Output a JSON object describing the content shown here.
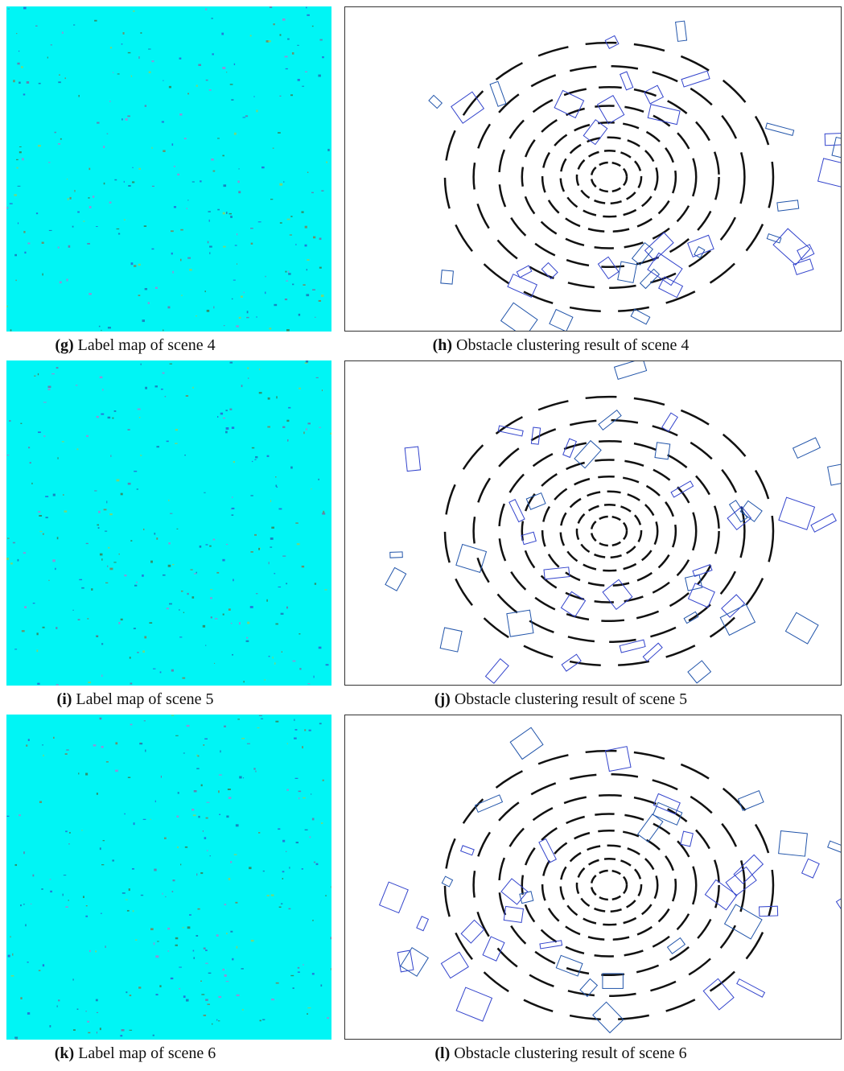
{
  "panels": [
    {
      "tag": "(g)",
      "caption": "Label map of scene 4"
    },
    {
      "tag": "(h)",
      "caption": "Obstacle clustering result of scene 4"
    },
    {
      "tag": "(i)",
      "caption": "Label map of scene 5"
    },
    {
      "tag": "(j)",
      "caption": "Obstacle clustering result of scene 5"
    },
    {
      "tag": "(k)",
      "caption": "Label map of scene 6"
    },
    {
      "tag": "(l)",
      "caption": "Obstacle clustering result of scene 6"
    }
  ]
}
